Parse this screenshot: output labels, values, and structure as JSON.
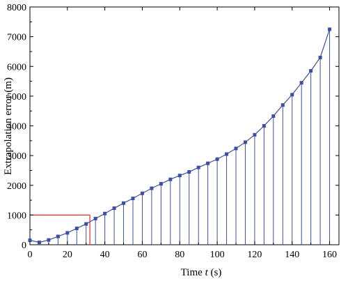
{
  "chart_data": {
    "type": "line",
    "xlabel_prefix": "Time ",
    "xlabel_var": "t",
    "xlabel_suffix": " (s)",
    "ylabel": "Extrapolation error (m)",
    "xlim": [
      0,
      165
    ],
    "ylim": [
      0,
      8000
    ],
    "xticks": [
      0,
      20,
      40,
      60,
      80,
      100,
      120,
      140,
      160
    ],
    "yticks": [
      0,
      1000,
      2000,
      3000,
      4000,
      5000,
      6000,
      7000,
      8000
    ],
    "grid": false,
    "colors": {
      "series": "#3d4fa0",
      "highlight": "#e8262d"
    },
    "series": [
      {
        "x": [
          0,
          5,
          10,
          15,
          20,
          25,
          30,
          35,
          40,
          45,
          50,
          55,
          60,
          65,
          70,
          75,
          80,
          85,
          90,
          95,
          100,
          105,
          110,
          115,
          120,
          125,
          130,
          135,
          140,
          145,
          150,
          155,
          160
        ],
        "y": [
          150,
          80,
          160,
          280,
          400,
          550,
          700,
          880,
          1050,
          1230,
          1400,
          1560,
          1730,
          1900,
          2050,
          2200,
          2330,
          2450,
          2600,
          2740,
          2880,
          3050,
          3240,
          3450,
          3700,
          4000,
          4330,
          4700,
          5050,
          5450,
          5850,
          6300,
          7250
        ]
      }
    ],
    "stems": true,
    "highlight": {
      "x": 32,
      "y": 1000
    }
  }
}
